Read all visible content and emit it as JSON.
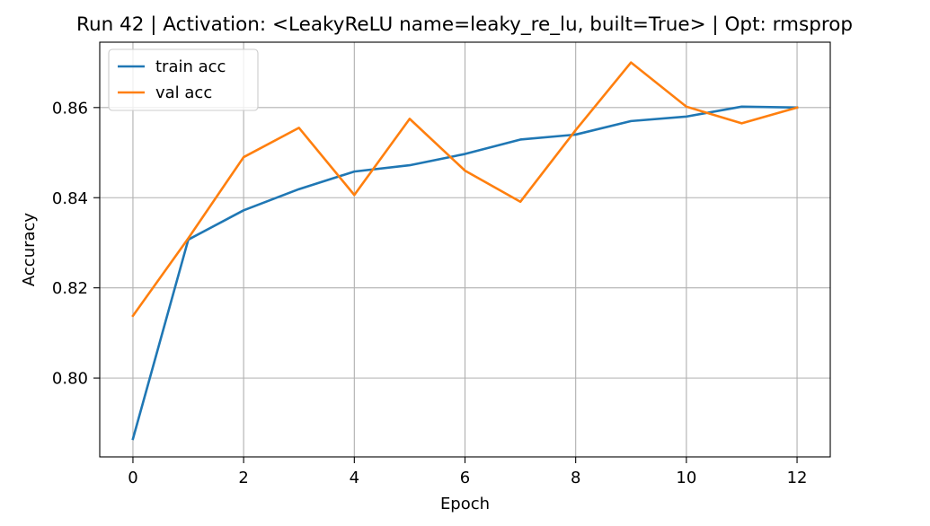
{
  "chart_data": {
    "type": "line",
    "title": "Run 42 | Activation: <LeakyReLU name=leaky_re_lu, built=True> | Opt: rmsprop",
    "xlabel": "Epoch",
    "ylabel": "Accuracy",
    "x": [
      0,
      1,
      2,
      3,
      4,
      5,
      6,
      7,
      8,
      9,
      10,
      11,
      12
    ],
    "xlim": [
      -0.6,
      12.6
    ],
    "ylim": [
      0.7825,
      0.8745
    ],
    "xticks": [
      0,
      2,
      4,
      6,
      8,
      10,
      12
    ],
    "yticks": [
      0.8,
      0.82,
      0.84,
      0.86
    ],
    "xtick_labels": [
      "0",
      "2",
      "4",
      "6",
      "8",
      "10",
      "12"
    ],
    "ytick_labels": [
      "0.80",
      "0.82",
      "0.84",
      "0.86"
    ],
    "grid": true,
    "legend_position": "upper-left",
    "series": [
      {
        "name": "train acc",
        "color": "#1f77b4",
        "values": [
          0.7865,
          0.8307,
          0.8372,
          0.8419,
          0.8458,
          0.8472,
          0.8497,
          0.8529,
          0.854,
          0.857,
          0.858,
          0.8602,
          0.86
        ]
      },
      {
        "name": "val acc",
        "color": "#ff7f0e",
        "values": [
          0.8138,
          0.831,
          0.849,
          0.8555,
          0.8406,
          0.8575,
          0.846,
          0.8391,
          0.855,
          0.87,
          0.8602,
          0.8565,
          0.86
        ]
      }
    ]
  }
}
